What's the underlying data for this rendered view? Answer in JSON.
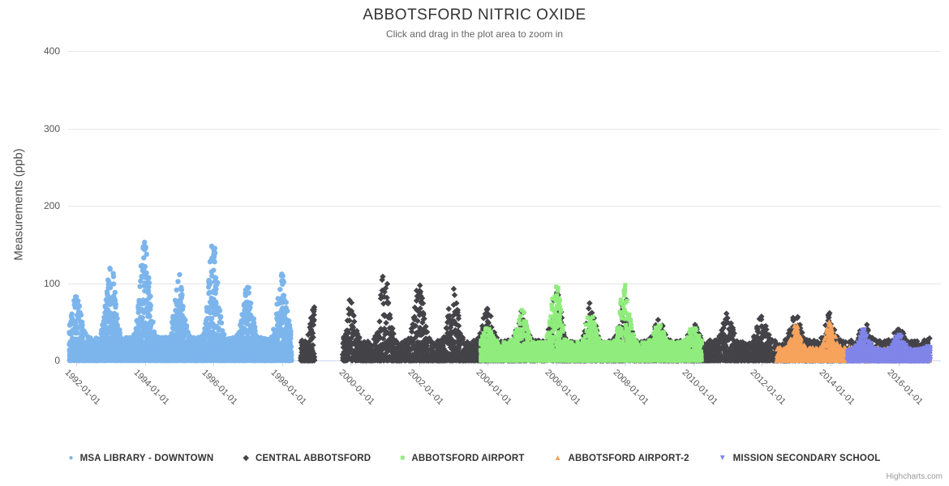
{
  "page": {
    "credit": "Highcharts.com"
  },
  "chart_data": {
    "type": "scatter",
    "title": "ABBOTSFORD NITRIC OXIDE",
    "subtitle": "Click and drag in the plot area to zoom in",
    "xlabel": "",
    "ylabel": "Measurements (ppb)",
    "ylim": [
      0,
      400
    ],
    "xlim_years": [
      1991.77,
      2017.23
    ],
    "grid": true,
    "legend_position": "bottom",
    "y_ticks": [
      0,
      100,
      200,
      300,
      400
    ],
    "x_ticks": [
      {
        "year": 1992,
        "label": "1992-01-01"
      },
      {
        "year": 1994,
        "label": "1994-01-01"
      },
      {
        "year": 1996,
        "label": "1996-01-01"
      },
      {
        "year": 1998,
        "label": "1998-01-01"
      },
      {
        "year": 2000,
        "label": "2000-01-01"
      },
      {
        "year": 2002,
        "label": "2002-01-01"
      },
      {
        "year": 2004,
        "label": "2004-01-01"
      },
      {
        "year": 2006,
        "label": "2006-01-01"
      },
      {
        "year": 2008,
        "label": "2008-01-01"
      },
      {
        "year": 2010,
        "label": "2010-01-01"
      },
      {
        "year": 2012,
        "label": "2012-01-01"
      },
      {
        "year": 2014,
        "label": "2014-01-01"
      },
      {
        "year": 2016,
        "label": "2016-01-01"
      }
    ],
    "colors": {
      "grid": "#e6e6e6",
      "axis_line": "#ccd6eb"
    },
    "synth": {
      "season_sharpness": 3,
      "y_exponent": 2.6,
      "day_grid": 240
    },
    "series": [
      {
        "name": "MSA LIBRARY - DOWNTOWN",
        "color": "#7cb5ec",
        "marker": "circle",
        "size": 3.2,
        "seed": 7,
        "base": 30,
        "segments": [
          {
            "start": 1991.8,
            "end": 1998.28,
            "per_year": 620
          }
        ],
        "peaks": {
          "1992": 85,
          "1993": 130,
          "1994": 163,
          "1995": 112,
          "1996": 158,
          "1997": 105,
          "1998": 112
        }
      },
      {
        "name": "CENTRAL ABBOTSFORD",
        "color": "#434348",
        "marker": "diamond",
        "size": 3.0,
        "seed": 13,
        "base": 26,
        "segments": [
          {
            "start": 1998.55,
            "end": 1998.95,
            "per_year": 520
          },
          {
            "start": 1999.78,
            "end": 2016.9,
            "per_year": 340
          }
        ],
        "peaks": {
          "1999": 88,
          "2000": 80,
          "2001": 120,
          "2002": 100,
          "2003": 95,
          "2004": 70,
          "2005": 66,
          "2006": 104,
          "2007": 75,
          "2008": 86,
          "2009": 55,
          "2010": 52,
          "2011": 62,
          "2012": 58,
          "2013": 66,
          "2014": 62,
          "2015": 50,
          "2016": 42,
          "2017": 30
        }
      },
      {
        "name": "ABBOTSFORD AIRPORT",
        "color": "#90ed7d",
        "marker": "square",
        "size": 2.9,
        "seed": 21,
        "base": 24,
        "segments": [
          {
            "start": 2003.8,
            "end": 2010.26,
            "per_year": 520
          }
        ],
        "peaks": {
          "2004": 42,
          "2005": 70,
          "2006": 104,
          "2007": 62,
          "2008": 103,
          "2009": 48,
          "2010": 46
        }
      },
      {
        "name": "ABBOTSFORD AIRPORT-2",
        "color": "#f7a35c",
        "marker": "triangle-up",
        "size": 3.2,
        "seed": 34,
        "base": 16,
        "segments": [
          {
            "start": 2012.45,
            "end": 2014.55,
            "per_year": 440
          },
          {
            "start": 2014.55,
            "end": 2016.9,
            "per_year": 150
          }
        ],
        "peaks": {
          "2013": 46,
          "2014": 50,
          "2015": 14,
          "2016": 10,
          "2017": 8
        }
      },
      {
        "name": "MISSION SECONDARY SCHOOL",
        "color": "#8085e9",
        "marker": "triangle-down",
        "size": 3.2,
        "seed": 55,
        "base": 15,
        "segments": [
          {
            "start": 2014.5,
            "end": 2016.92,
            "per_year": 430
          }
        ],
        "peaks": {
          "2015": 42,
          "2016": 34,
          "2017": 22
        }
      }
    ]
  }
}
